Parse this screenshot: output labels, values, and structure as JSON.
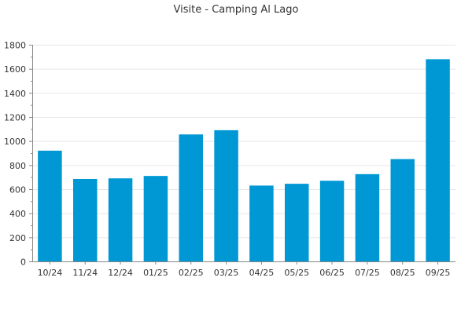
{
  "chart_data": {
    "type": "bar",
    "title": "Visite - Camping Al Lago",
    "xlabel": "",
    "ylabel": "",
    "categories": [
      "10/24",
      "11/24",
      "12/24",
      "01/25",
      "02/25",
      "03/25",
      "04/25",
      "05/25",
      "06/25",
      "07/25",
      "08/25",
      "09/25"
    ],
    "values": [
      920,
      685,
      690,
      710,
      1055,
      1090,
      630,
      645,
      670,
      725,
      850,
      1680
    ],
    "ylim": [
      0,
      1800
    ],
    "yticks": [
      0,
      200,
      400,
      600,
      800,
      1000,
      1200,
      1400,
      1600,
      1800
    ],
    "grid": true,
    "legend": "none",
    "bar_color": "#0098d4"
  }
}
